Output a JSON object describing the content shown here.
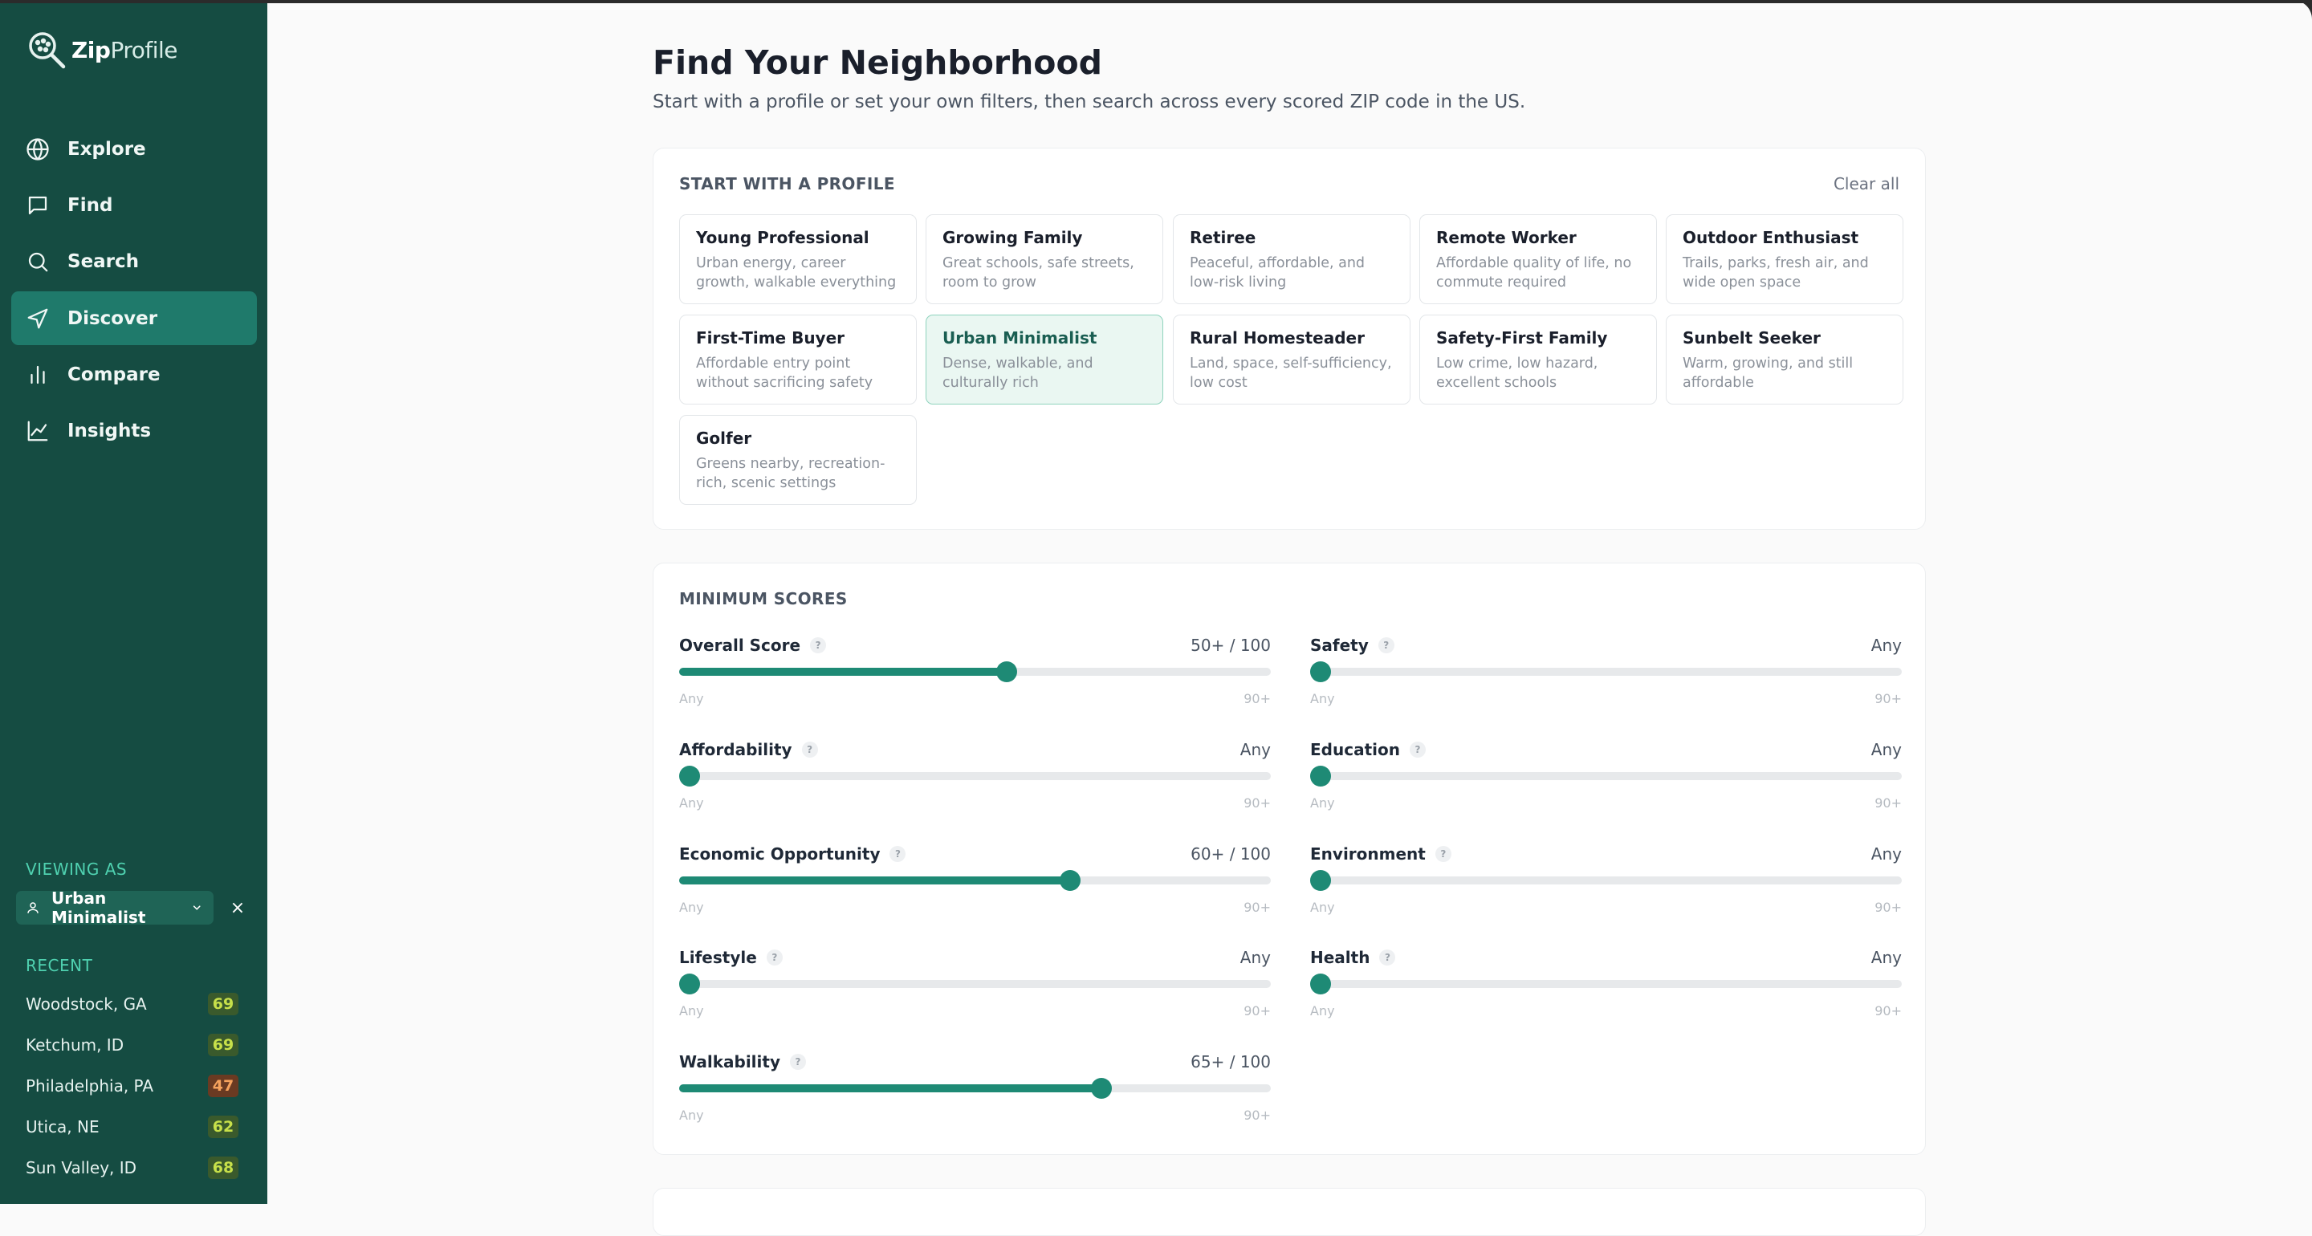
{
  "app": {
    "logo_bold": "Zip",
    "logo_light": "Profile"
  },
  "sidebar": {
    "nav": [
      {
        "label": "Explore",
        "icon": "globe-icon"
      },
      {
        "label": "Find",
        "icon": "message-icon"
      },
      {
        "label": "Search",
        "icon": "search-icon"
      },
      {
        "label": "Discover",
        "icon": "navigation-icon",
        "active": true
      },
      {
        "label": "Compare",
        "icon": "bar-chart-icon"
      },
      {
        "label": "Insights",
        "icon": "line-chart-icon"
      }
    ],
    "viewing_as_label": "VIEWING AS",
    "viewing_as_value": "Urban Minimalist",
    "viewing_close": "×",
    "recent_label": "RECENT",
    "recent": [
      {
        "name": "Woodstock, GA",
        "score": "69",
        "color": "#c7e04a",
        "bg": "#3a5a2c"
      },
      {
        "name": "Ketchum, ID",
        "score": "69",
        "color": "#c7e04a",
        "bg": "#3a5a2c"
      },
      {
        "name": "Philadelphia, PA",
        "score": "47",
        "color": "#f5a25d",
        "bg": "#6a3a22"
      },
      {
        "name": "Utica, NE",
        "score": "62",
        "color": "#c7e04a",
        "bg": "#3a5a2c"
      },
      {
        "name": "Sun Valley, ID",
        "score": "68",
        "color": "#c7e04a",
        "bg": "#3a5a2c"
      }
    ]
  },
  "main": {
    "title": "Find Your Neighborhood",
    "subtitle": "Start with a profile or set your own filters, then search across every scored ZIP code in the US.",
    "profiles_card": {
      "label": "START WITH A PROFILE",
      "clear_all": "Clear all",
      "profiles": [
        {
          "name": "Young Professional",
          "desc": "Urban energy, career growth, walkable everything"
        },
        {
          "name": "Growing Family",
          "desc": "Great schools, safe streets, room to grow"
        },
        {
          "name": "Retiree",
          "desc": "Peaceful, affordable, and low-risk living"
        },
        {
          "name": "Remote Worker",
          "desc": "Affordable quality of life, no commute required"
        },
        {
          "name": "Outdoor Enthusiast",
          "desc": "Trails, parks, fresh air, and wide open space"
        },
        {
          "name": "First-Time Buyer",
          "desc": "Affordable entry point without sacrificing safety"
        },
        {
          "name": "Urban Minimalist",
          "desc": "Dense, walkable, and culturally rich",
          "selected": true
        },
        {
          "name": "Rural Homesteader",
          "desc": "Land, space, self-sufficiency, low cost"
        },
        {
          "name": "Safety-First Family",
          "desc": "Low crime, low hazard, excellent schools"
        },
        {
          "name": "Sunbelt Seeker",
          "desc": "Warm, growing, and still affordable"
        },
        {
          "name": "Golfer",
          "desc": "Greens nearby, recreation-rich, scenic settings"
        }
      ]
    },
    "scores_card": {
      "label": "MINIMUM SCORES",
      "help_glyph": "?",
      "range_min": "Any",
      "range_max": "90+",
      "sliders": [
        {
          "name": "overall-score",
          "label": "Overall Score",
          "value_text": "50+ / 100",
          "level": 0.555
        },
        {
          "name": "safety",
          "label": "Safety",
          "value_text": "Any",
          "level": 0
        },
        {
          "name": "affordability",
          "label": "Affordability",
          "value_text": "Any",
          "level": 0
        },
        {
          "name": "education",
          "label": "Education",
          "value_text": "Any",
          "level": 0
        },
        {
          "name": "economic-opportunity",
          "label": "Economic Opportunity",
          "value_text": "60+ / 100",
          "level": 0.666
        },
        {
          "name": "environment",
          "label": "Environment",
          "value_text": "Any",
          "level": 0
        },
        {
          "name": "lifestyle",
          "label": "Lifestyle",
          "value_text": "Any",
          "level": 0
        },
        {
          "name": "health",
          "label": "Health",
          "value_text": "Any",
          "level": 0
        },
        {
          "name": "walkability",
          "label": "Walkability",
          "value_text": "65+ / 100",
          "level": 0.722
        }
      ]
    }
  }
}
